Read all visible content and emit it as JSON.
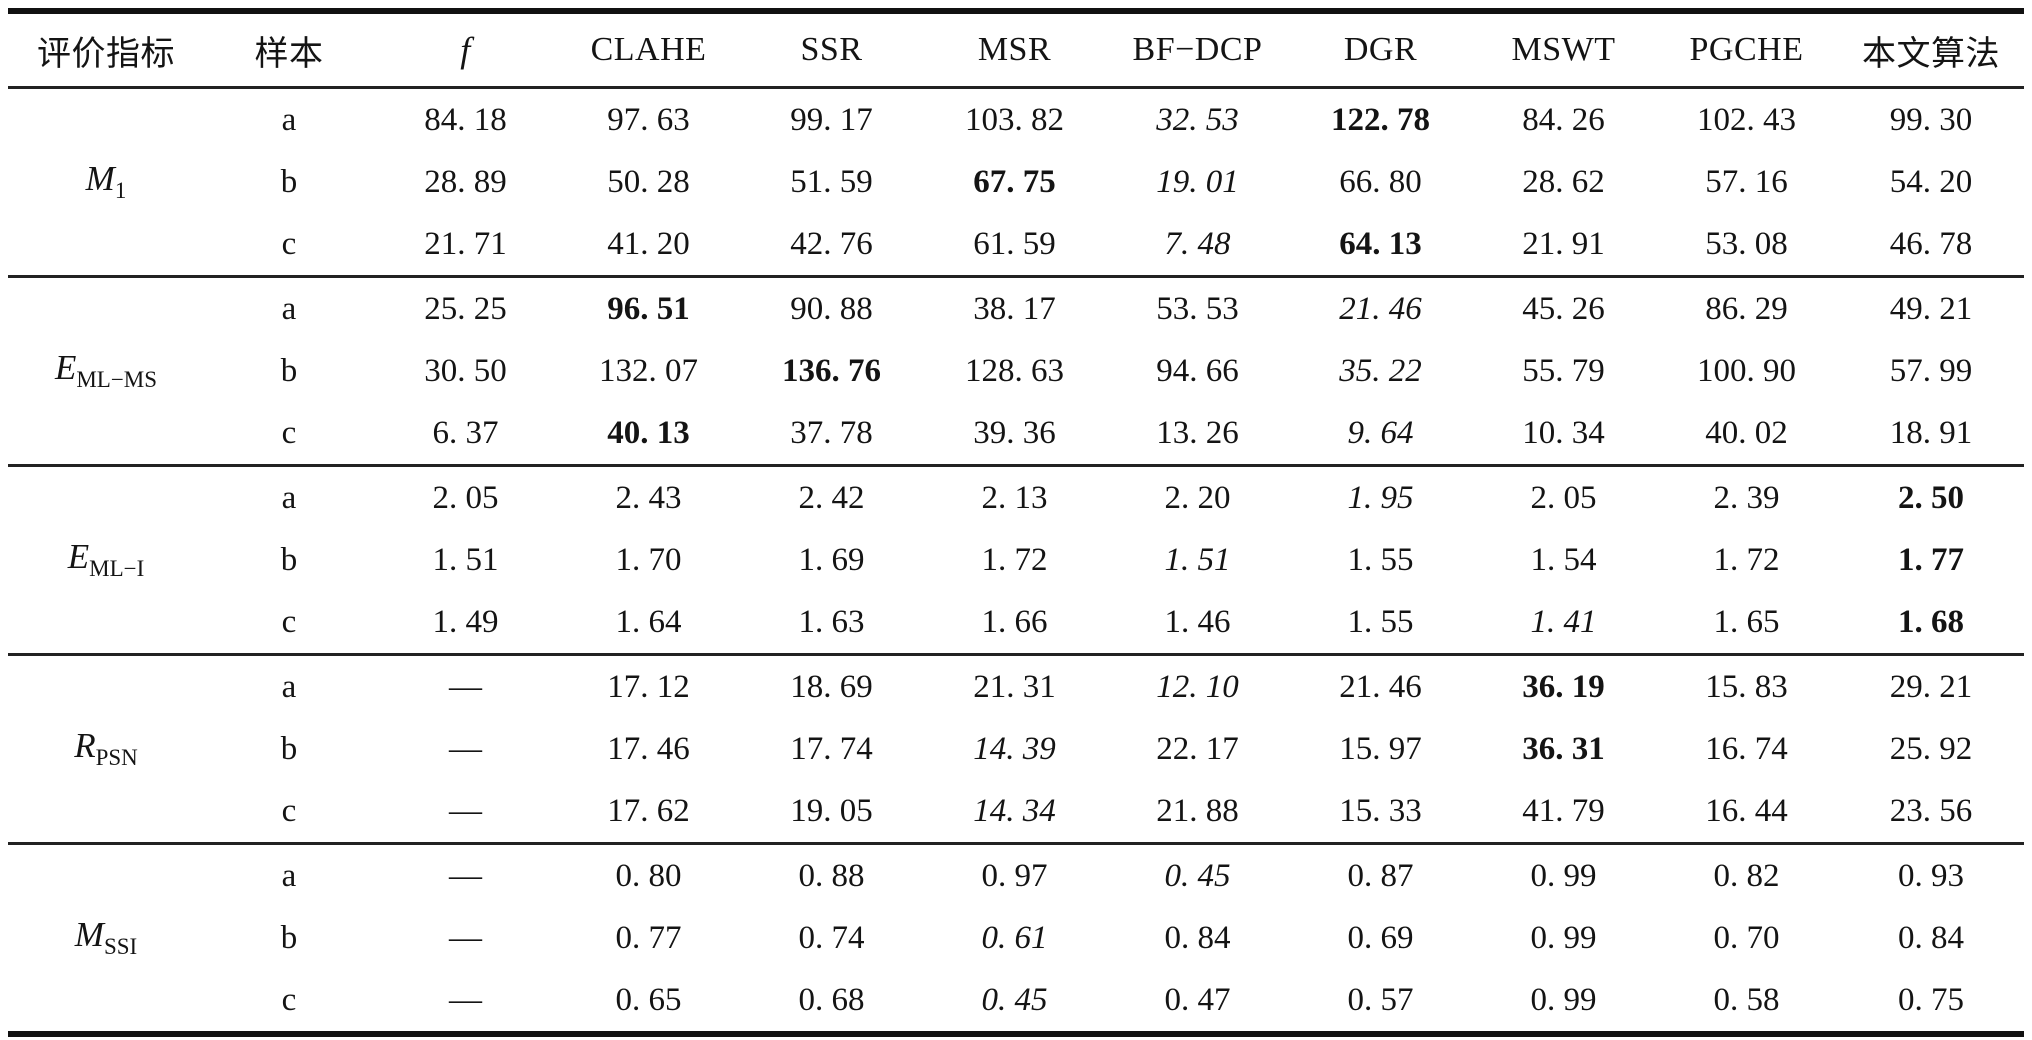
{
  "table": {
    "headers": [
      "评价指标",
      "样本",
      "f",
      "CLAHE",
      "SSR",
      "MSR",
      "BF−DCP",
      "DGR",
      "MSWT",
      "PGCHE",
      "本文算法"
    ],
    "groups": [
      {
        "metric": {
          "base": "M",
          "sub": "1"
        },
        "rows": [
          {
            "sample": "a",
            "cells": [
              {
                "v": "84. 18"
              },
              {
                "v": "97. 63"
              },
              {
                "v": "99. 17"
              },
              {
                "v": "103. 82"
              },
              {
                "v": "32. 53",
                "s": "italic"
              },
              {
                "v": "122. 78",
                "s": "bold"
              },
              {
                "v": "84. 26"
              },
              {
                "v": "102. 43"
              },
              {
                "v": "99. 30"
              }
            ]
          },
          {
            "sample": "b",
            "cells": [
              {
                "v": "28. 89"
              },
              {
                "v": "50. 28"
              },
              {
                "v": "51. 59"
              },
              {
                "v": "67. 75",
                "s": "bold"
              },
              {
                "v": "19. 01",
                "s": "italic"
              },
              {
                "v": "66. 80"
              },
              {
                "v": "28. 62"
              },
              {
                "v": "57. 16"
              },
              {
                "v": "54. 20"
              }
            ]
          },
          {
            "sample": "c",
            "cells": [
              {
                "v": "21. 71"
              },
              {
                "v": "41. 20"
              },
              {
                "v": "42. 76"
              },
              {
                "v": "61. 59"
              },
              {
                "v": "7. 48",
                "s": "italic"
              },
              {
                "v": "64. 13",
                "s": "bold"
              },
              {
                "v": "21. 91"
              },
              {
                "v": "53. 08"
              },
              {
                "v": "46. 78"
              }
            ]
          }
        ]
      },
      {
        "metric": {
          "base": "E",
          "sub": "ML−MS"
        },
        "rows": [
          {
            "sample": "a",
            "cells": [
              {
                "v": "25. 25"
              },
              {
                "v": "96. 51",
                "s": "bold"
              },
              {
                "v": "90. 88"
              },
              {
                "v": "38. 17"
              },
              {
                "v": "53. 53"
              },
              {
                "v": "21. 46",
                "s": "italic"
              },
              {
                "v": "45. 26"
              },
              {
                "v": "86. 29"
              },
              {
                "v": "49. 21"
              }
            ]
          },
          {
            "sample": "b",
            "cells": [
              {
                "v": "30. 50"
              },
              {
                "v": "132. 07"
              },
              {
                "v": "136. 76",
                "s": "bold"
              },
              {
                "v": "128. 63"
              },
              {
                "v": "94. 66"
              },
              {
                "v": "35. 22",
                "s": "italic"
              },
              {
                "v": "55. 79"
              },
              {
                "v": "100. 90"
              },
              {
                "v": "57. 99"
              }
            ]
          },
          {
            "sample": "c",
            "cells": [
              {
                "v": "6. 37"
              },
              {
                "v": "40. 13",
                "s": "bold"
              },
              {
                "v": "37. 78"
              },
              {
                "v": "39. 36"
              },
              {
                "v": "13. 26"
              },
              {
                "v": "9. 64",
                "s": "italic"
              },
              {
                "v": "10. 34"
              },
              {
                "v": "40. 02"
              },
              {
                "v": "18. 91"
              }
            ]
          }
        ]
      },
      {
        "metric": {
          "base": "E",
          "sub": "ML−I"
        },
        "rows": [
          {
            "sample": "a",
            "cells": [
              {
                "v": "2. 05"
              },
              {
                "v": "2. 43"
              },
              {
                "v": "2. 42"
              },
              {
                "v": "2. 13"
              },
              {
                "v": "2. 20"
              },
              {
                "v": "1. 95",
                "s": "italic"
              },
              {
                "v": "2. 05"
              },
              {
                "v": "2. 39"
              },
              {
                "v": "2. 50",
                "s": "bold"
              }
            ]
          },
          {
            "sample": "b",
            "cells": [
              {
                "v": "1. 51"
              },
              {
                "v": "1. 70"
              },
              {
                "v": "1. 69"
              },
              {
                "v": "1. 72"
              },
              {
                "v": "1. 51",
                "s": "italic"
              },
              {
                "v": "1. 55"
              },
              {
                "v": "1. 54"
              },
              {
                "v": "1. 72"
              },
              {
                "v": "1. 77",
                "s": "bold"
              }
            ]
          },
          {
            "sample": "c",
            "cells": [
              {
                "v": "1. 49"
              },
              {
                "v": "1. 64"
              },
              {
                "v": "1. 63"
              },
              {
                "v": "1. 66"
              },
              {
                "v": "1. 46"
              },
              {
                "v": "1. 55"
              },
              {
                "v": "1. 41",
                "s": "italic"
              },
              {
                "v": "1. 65"
              },
              {
                "v": "1. 68",
                "s": "bold"
              }
            ]
          }
        ]
      },
      {
        "metric": {
          "base": "R",
          "sub": "PSN"
        },
        "rows": [
          {
            "sample": "a",
            "cells": [
              {
                "v": "—"
              },
              {
                "v": "17. 12"
              },
              {
                "v": "18. 69"
              },
              {
                "v": "21. 31"
              },
              {
                "v": "12. 10",
                "s": "italic"
              },
              {
                "v": "21. 46"
              },
              {
                "v": "36. 19",
                "s": "bold"
              },
              {
                "v": "15. 83"
              },
              {
                "v": "29. 21"
              }
            ]
          },
          {
            "sample": "b",
            "cells": [
              {
                "v": "—"
              },
              {
                "v": "17. 46"
              },
              {
                "v": "17. 74"
              },
              {
                "v": "14. 39",
                "s": "italic"
              },
              {
                "v": "22. 17"
              },
              {
                "v": "15. 97"
              },
              {
                "v": "36. 31",
                "s": "bold"
              },
              {
                "v": "16. 74"
              },
              {
                "v": "25. 92"
              }
            ]
          },
          {
            "sample": "c",
            "cells": [
              {
                "v": "—"
              },
              {
                "v": "17. 62"
              },
              {
                "v": "19. 05"
              },
              {
                "v": "14. 34",
                "s": "italic"
              },
              {
                "v": "21. 88"
              },
              {
                "v": "15. 33"
              },
              {
                "v": "41. 79"
              },
              {
                "v": "16. 44"
              },
              {
                "v": "23. 56"
              }
            ]
          }
        ]
      },
      {
        "metric": {
          "base": "M",
          "sub": "SSI"
        },
        "rows": [
          {
            "sample": "a",
            "cells": [
              {
                "v": "—"
              },
              {
                "v": "0. 80"
              },
              {
                "v": "0. 88"
              },
              {
                "v": "0. 97"
              },
              {
                "v": "0. 45",
                "s": "italic"
              },
              {
                "v": "0. 87"
              },
              {
                "v": "0. 99"
              },
              {
                "v": "0. 82"
              },
              {
                "v": "0. 93"
              }
            ]
          },
          {
            "sample": "b",
            "cells": [
              {
                "v": "—"
              },
              {
                "v": "0. 77"
              },
              {
                "v": "0. 74"
              },
              {
                "v": "0. 61",
                "s": "italic"
              },
              {
                "v": "0. 84"
              },
              {
                "v": "0. 69"
              },
              {
                "v": "0. 99"
              },
              {
                "v": "0. 70"
              },
              {
                "v": "0. 84"
              }
            ]
          },
          {
            "sample": "c",
            "cells": [
              {
                "v": "—"
              },
              {
                "v": "0. 65"
              },
              {
                "v": "0. 68"
              },
              {
                "v": "0. 45",
                "s": "italic"
              },
              {
                "v": "0. 47"
              },
              {
                "v": "0. 57"
              },
              {
                "v": "0. 99"
              },
              {
                "v": "0. 58"
              },
              {
                "v": "0. 75"
              }
            ]
          }
        ]
      }
    ]
  }
}
